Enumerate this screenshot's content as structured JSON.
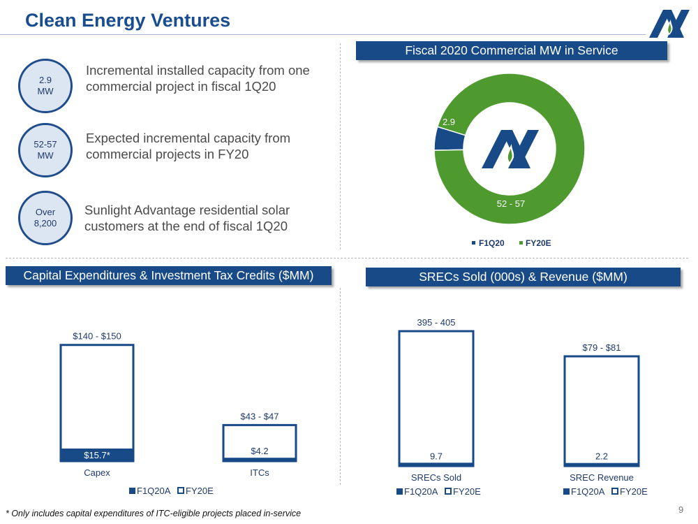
{
  "header": {
    "title": "Clean Energy Ventures"
  },
  "kpis": [
    {
      "bubble_line1": "2.9",
      "bubble_line2": "MW",
      "text": "Incremental installed capacity from one commercial project in fiscal 1Q20"
    },
    {
      "bubble_line1": "52-57",
      "bubble_line2": "MW",
      "text": "Expected incremental capacity from commercial projects in FY20"
    },
    {
      "bubble_line1": "Over",
      "bubble_line2": "8,200",
      "text": "Sunlight Advantage residential solar customers at the end of fiscal 1Q20"
    }
  ],
  "panels": {
    "mw": "Fiscal 2020 Commercial MW in Service",
    "capex": "Capital Expenditures & Investment Tax Credits ($MM)",
    "srecs": "SRECs Sold (000s) & Revenue ($MM)"
  },
  "colors": {
    "navy": "#174a87",
    "green": "#4e9a2e",
    "bubble_fill": "#dce6f3"
  },
  "chart_data": [
    {
      "type": "pie",
      "title": "Fiscal 2020 Commercial MW in Service",
      "donut": true,
      "slices": [
        {
          "label": "F1Q20",
          "value": 2.9,
          "data_label": "2.9",
          "color": "#174a87"
        },
        {
          "label": "FY20E",
          "value": 54.5,
          "data_label": "52 - 57",
          "color": "#4e9a2e"
        }
      ],
      "legend": [
        "F1Q20",
        "FY20E"
      ],
      "legend_placement": "bottom"
    },
    {
      "type": "bar",
      "title": "Capital Expenditures & Investment Tax Credits ($MM)",
      "categories": [
        "Capex",
        "ITCs"
      ],
      "series": [
        {
          "name": "F1Q20A",
          "values": [
            15.7,
            4.2
          ],
          "labels": [
            "$15.7*",
            "$4.2"
          ]
        },
        {
          "name": "FY20E",
          "values": [
            145,
            45
          ],
          "labels": [
            "$140 - $150",
            "$43 - $47"
          ]
        }
      ],
      "overlap": true,
      "legend_placement": "bottom"
    },
    {
      "type": "bar",
      "title": "SRECs Sold (000s)",
      "categories": [
        "SRECs Sold"
      ],
      "series": [
        {
          "name": "F1Q20A",
          "values": [
            9.7
          ],
          "labels": [
            "9.7"
          ]
        },
        {
          "name": "FY20E",
          "values": [
            400
          ],
          "labels": [
            "395 - 405"
          ]
        }
      ],
      "overlap": true,
      "legend_placement": "bottom"
    },
    {
      "type": "bar",
      "title": "SREC Revenue ($MM)",
      "categories": [
        "SREC Revenue"
      ],
      "series": [
        {
          "name": "F1Q20A",
          "values": [
            2.2
          ],
          "labels": [
            "2.2"
          ]
        },
        {
          "name": "FY20E",
          "values": [
            80
          ],
          "labels": [
            "$79 - $81"
          ]
        }
      ],
      "overlap": true,
      "legend_placement": "bottom"
    }
  ],
  "footer": {
    "footnote": "*  Only includes capital expenditures of ITC-eligible projects placed in-service",
    "page_number": "9"
  }
}
